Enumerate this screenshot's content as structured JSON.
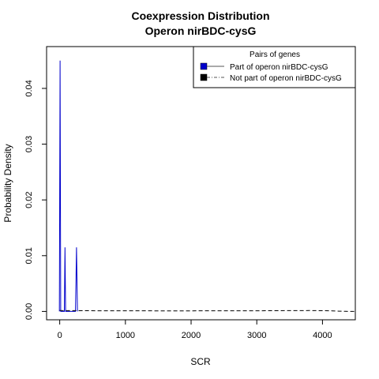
{
  "chart_data": {
    "type": "line",
    "title": "Coexpression Distribution",
    "subtitle": "Operon nirBDC-cysG",
    "xlabel": "SCR",
    "ylabel": "Probability Density",
    "xlim": [
      -200,
      4500
    ],
    "ylim": [
      -0.0015,
      0.0475
    ],
    "x_ticks": [
      0,
      1000,
      2000,
      3000,
      4000
    ],
    "y_ticks": [
      0.0,
      0.01,
      0.02,
      0.03,
      0.04
    ],
    "y_tick_labels": [
      "0.00",
      "0.01",
      "0.02",
      "0.03",
      "0.04"
    ],
    "grid": false,
    "legend": {
      "title": "Pairs of genes",
      "placement": "top-right",
      "entries": [
        "Part of operon nirBDC-cysG",
        "Not part of operon nirBDC-cysG"
      ]
    },
    "series": [
      {
        "name": "Part of operon nirBDC-cysG",
        "color": "#0000cc",
        "line_style": "solid",
        "x": [
          -5,
          5,
          15,
          30,
          70,
          80,
          90,
          150,
          240,
          255,
          270
        ],
        "y": [
          0,
          0.045,
          0,
          0,
          0,
          0.0115,
          0,
          0,
          0,
          0.0115,
          0
        ]
      },
      {
        "name": "Not part of operon nirBDC-cysG",
        "color": "#000000",
        "line_style": "dashed",
        "x": [
          0,
          200,
          600,
          1000,
          1500,
          2000,
          2500,
          3000,
          3500,
          3800,
          4000,
          4150,
          4250,
          4350,
          4450,
          4500
        ],
        "y": [
          0.00015,
          0.00014,
          0.00012,
          0.00011,
          0.0001,
          0.0001,
          0.00011,
          0.00012,
          0.00014,
          0.00015,
          0.00013,
          0.0001,
          5e-05,
          1e-05,
          0,
          0
        ]
      }
    ]
  }
}
